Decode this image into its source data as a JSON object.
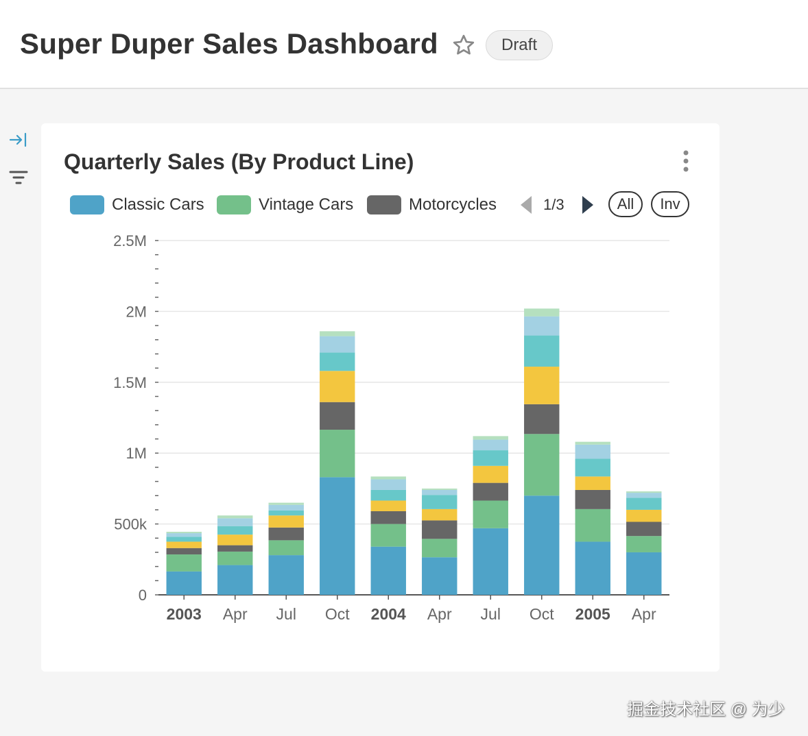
{
  "header": {
    "title": "Super Duper Sales Dashboard",
    "badge": "Draft"
  },
  "icons": {
    "star": "star-icon",
    "expand": "expand-right-icon",
    "filter": "filter-icon",
    "menu": "more-vertical-icon",
    "prev": "caret-left-icon",
    "next": "caret-right-icon"
  },
  "card": {
    "title": "Quarterly Sales (By Product Line)"
  },
  "legend": {
    "items": [
      {
        "label": "Classic Cars",
        "color": "#4fa3c8"
      },
      {
        "label": "Vintage Cars",
        "color": "#74c08a"
      },
      {
        "label": "Motorcycles",
        "color": "#666666"
      }
    ],
    "page": "1/3",
    "all_label": "All",
    "inv_label": "Inv"
  },
  "chart_data": {
    "type": "bar",
    "stacked": true,
    "categories": [
      "2003",
      "Apr",
      "Jul",
      "Oct",
      "2004",
      "Apr",
      "Jul",
      "Oct",
      "2005",
      "Apr"
    ],
    "bold_categories": [
      0,
      4,
      8
    ],
    "y_ticks": [
      "0",
      "500k",
      "1M",
      "1.5M",
      "2M",
      "2.5M"
    ],
    "ylim": [
      0,
      2500000
    ],
    "grid": true,
    "series": [
      {
        "name": "Classic Cars",
        "color": "#4fa3c8",
        "values": [
          165000,
          210000,
          280000,
          830000,
          340000,
          265000,
          470000,
          700000,
          375000,
          300000
        ]
      },
      {
        "name": "Vintage Cars",
        "color": "#74c08a",
        "values": [
          120000,
          95000,
          105000,
          335000,
          160000,
          130000,
          195000,
          435000,
          230000,
          115000
        ]
      },
      {
        "name": "Motorcycles",
        "color": "#666666",
        "values": [
          45000,
          45000,
          90000,
          195000,
          90000,
          130000,
          125000,
          210000,
          135000,
          100000
        ]
      },
      {
        "color": "#f3c63f",
        "values": [
          45000,
          75000,
          85000,
          220000,
          75000,
          80000,
          120000,
          265000,
          95000,
          85000
        ]
      },
      {
        "color": "#67c8c9",
        "values": [
          35000,
          60000,
          35000,
          130000,
          75000,
          100000,
          110000,
          220000,
          125000,
          85000
        ]
      },
      {
        "color": "#a3d1e3",
        "values": [
          25000,
          55000,
          40000,
          115000,
          75000,
          35000,
          75000,
          135000,
          100000,
          35000
        ]
      },
      {
        "color": "#b5e0bf",
        "values": [
          10000,
          20000,
          15000,
          35000,
          20000,
          10000,
          25000,
          55000,
          20000,
          10000
        ]
      }
    ]
  },
  "watermark": "掘金技术社区 @ 为少"
}
